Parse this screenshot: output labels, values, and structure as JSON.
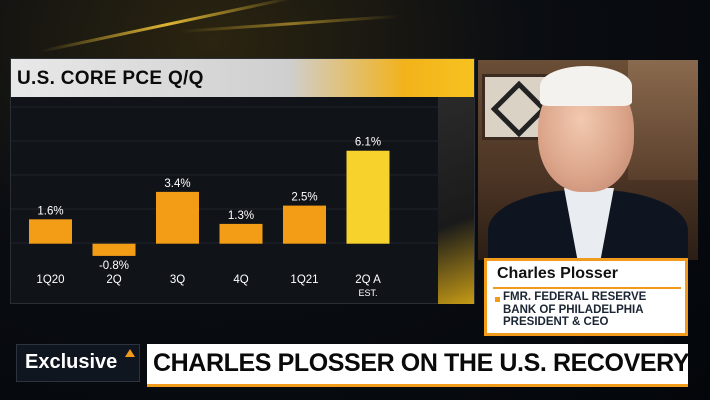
{
  "chart_data": {
    "type": "bar",
    "title": "U.S. CORE PCE Q/Q",
    "categories": [
      "1Q20",
      "2Q",
      "3Q",
      "4Q",
      "1Q21",
      "2Q A"
    ],
    "category_sublabels": [
      "",
      "",
      "",
      "",
      "",
      "EST."
    ],
    "values": [
      1.6,
      -0.8,
      3.4,
      1.3,
      2.5,
      6.1
    ],
    "value_labels": [
      "1.6%",
      "-0.8%",
      "3.4%",
      "1.3%",
      "2.5%",
      "6.1%"
    ],
    "ylim": [
      -1.2,
      7.0
    ],
    "grid": true,
    "colors": {
      "bar": "#f39c16",
      "highlight": "#f7d22c",
      "text": "#ffffff"
    }
  },
  "guest": {
    "name": "Charles Plosser",
    "title_lines": [
      "FMR. FEDERAL RESERVE",
      "BANK OF PHILADELPHIA",
      "PRESIDENT & CEO"
    ]
  },
  "lower_third": {
    "tag": "Exclusive",
    "headline": "CHARLES PLOSSER ON THE U.S. RECOVERY"
  },
  "colors": {
    "accent": "#f29a1b"
  }
}
